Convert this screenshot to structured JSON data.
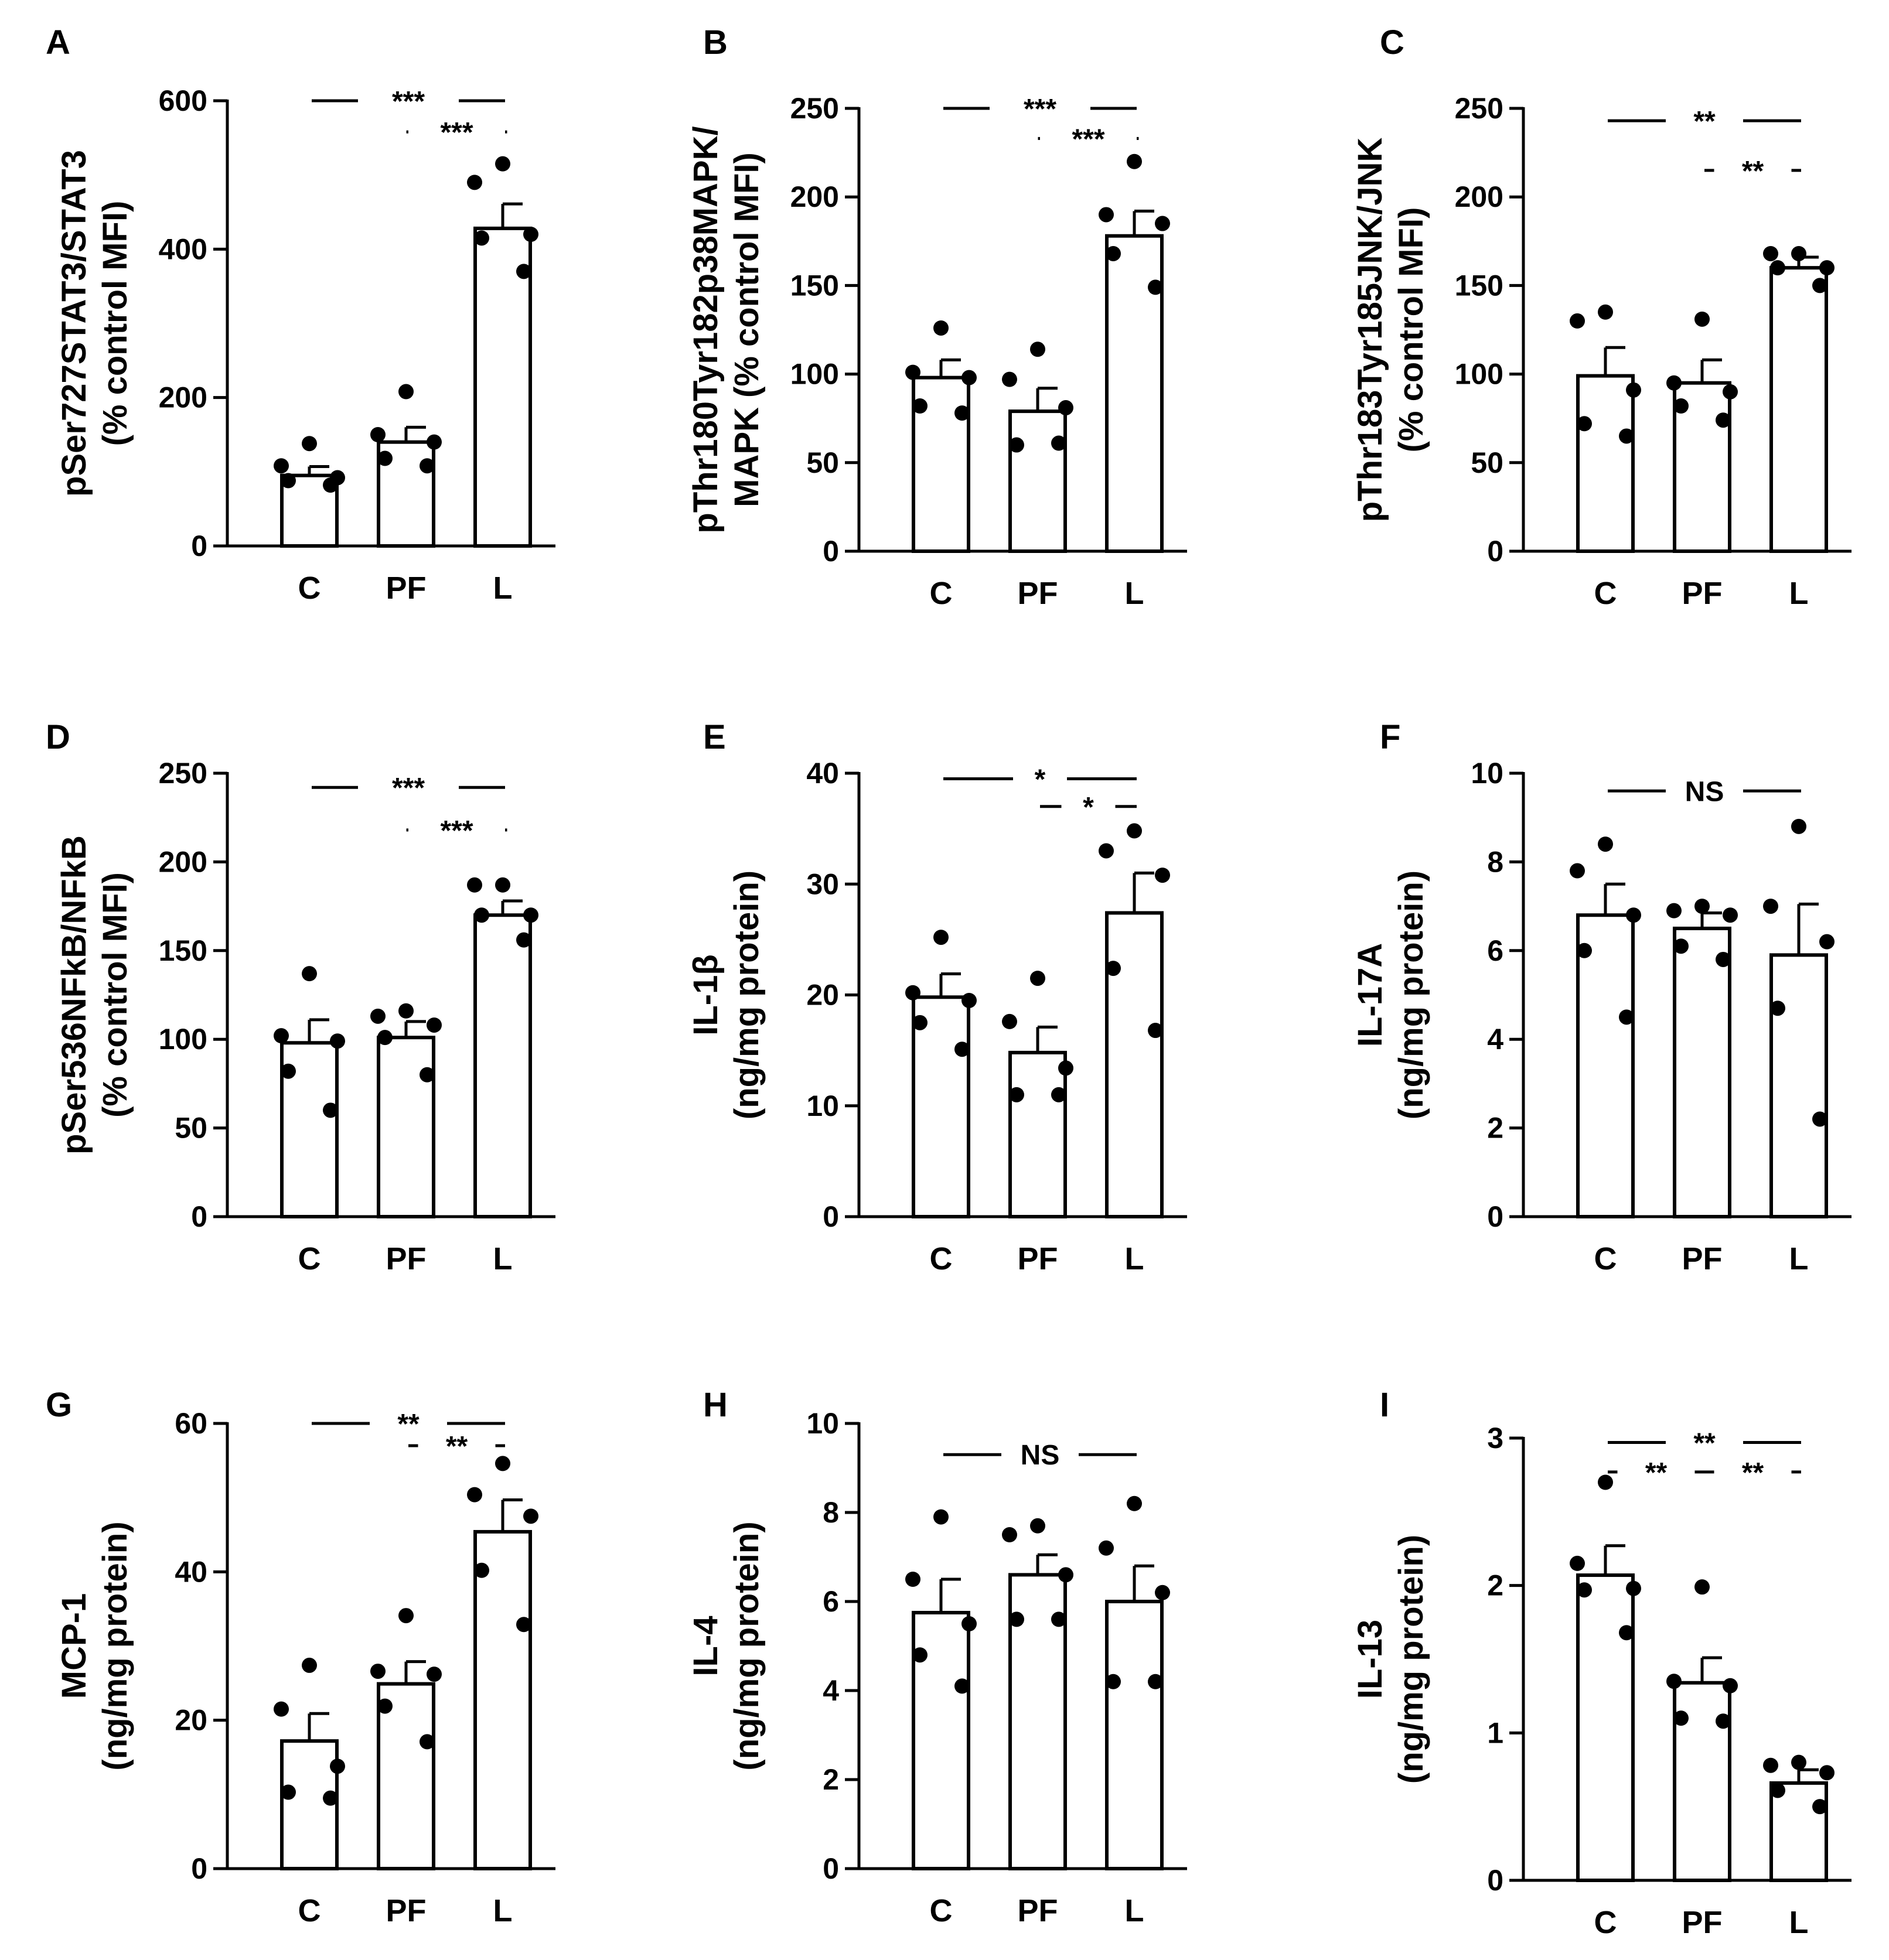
{
  "figure": {
    "title": ""
  },
  "chart_data": [
    {
      "panel": "A",
      "type": "bar",
      "categories": [
        "C",
        "PF",
        "L"
      ],
      "ylabel": [
        "pSer727STAT3/STAT3",
        "(% control MFI)"
      ],
      "ylim": [
        0,
        600
      ],
      "yticks": [
        0,
        200,
        400,
        600
      ],
      "series": [
        {
          "name": "mean",
          "values": [
            95,
            140,
            428
          ]
        }
      ],
      "errors": [
        12,
        20,
        33
      ],
      "points": [
        [
          138,
          108,
          92,
          88,
          82
        ],
        [
          208,
          150,
          140,
          118,
          108
        ],
        [
          515,
          490,
          420,
          415,
          370
        ]
      ],
      "significance": [
        {
          "from": 0,
          "to": 2,
          "label": "***",
          "y": 600
        },
        {
          "from": 1,
          "to": 2,
          "label": "***",
          "y": 558
        }
      ]
    },
    {
      "panel": "B",
      "type": "bar",
      "categories": [
        "C",
        "PF",
        "L"
      ],
      "ylabel": [
        "pThr180Tyr182p38MAPK/",
        "MAPK (% control MFI)"
      ],
      "ylim": [
        0,
        250
      ],
      "yticks": [
        0,
        50,
        100,
        150,
        200,
        250
      ],
      "series": [
        {
          "name": "mean",
          "values": [
            98,
            79,
            178
          ]
        }
      ],
      "errors": [
        10,
        13,
        14
      ],
      "points": [
        [
          126,
          101,
          98,
          82,
          78
        ],
        [
          114,
          97,
          81,
          60,
          61
        ],
        [
          220,
          190,
          185,
          168,
          149
        ]
      ],
      "significance": [
        {
          "from": 0,
          "to": 2,
          "label": "***",
          "y": 250
        },
        {
          "from": 1,
          "to": 2,
          "label": "***",
          "y": 233
        }
      ]
    },
    {
      "panel": "C",
      "type": "bar",
      "categories": [
        "C",
        "PF",
        "L"
      ],
      "ylabel": [
        "pThr183Tyr185JNK/JNK",
        "(% control MFI)"
      ],
      "ylim": [
        0,
        250
      ],
      "yticks": [
        0,
        50,
        100,
        150,
        200,
        250
      ],
      "series": [
        {
          "name": "mean",
          "values": [
            99,
            95,
            160
          ]
        }
      ],
      "errors": [
        16,
        13,
        6
      ],
      "points": [
        [
          135,
          130,
          91,
          72,
          65
        ],
        [
          131,
          95,
          90,
          82,
          74
        ],
        [
          168,
          168,
          160,
          160,
          150
        ]
      ],
      "significance": [
        {
          "from": 0,
          "to": 2,
          "label": "**",
          "y": 243
        },
        {
          "from": 1,
          "to": 2,
          "label": "**",
          "y": 215
        }
      ]
    },
    {
      "panel": "D",
      "type": "bar",
      "categories": [
        "C",
        "PF",
        "L"
      ],
      "ylabel": [
        "pSer536NFkB/NFkB",
        "(% control MFI)"
      ],
      "ylim": [
        0,
        250
      ],
      "yticks": [
        0,
        50,
        100,
        150,
        200,
        250
      ],
      "series": [
        {
          "name": "mean",
          "values": [
            98,
            101,
            170
          ]
        }
      ],
      "errors": [
        13,
        9,
        8
      ],
      "points": [
        [
          137,
          102,
          99,
          82,
          60
        ],
        [
          116,
          113,
          108,
          101,
          80
        ],
        [
          187,
          187,
          170,
          170,
          156
        ]
      ],
      "significance": [
        {
          "from": 0,
          "to": 2,
          "label": "***",
          "y": 242
        },
        {
          "from": 1,
          "to": 2,
          "label": "***",
          "y": 218
        }
      ]
    },
    {
      "panel": "E",
      "type": "bar",
      "categories": [
        "C",
        "PF",
        "L"
      ],
      "ylabel": [
        "IL-1β",
        "(ng/mg protein)"
      ],
      "ylim": [
        0,
        40
      ],
      "yticks": [
        0,
        10,
        20,
        30,
        40
      ],
      "series": [
        {
          "name": "mean",
          "values": [
            19.8,
            14.8,
            27.4
          ]
        }
      ],
      "errors": [
        2.1,
        2.3,
        3.6
      ],
      "points": [
        [
          25.2,
          20.2,
          19.5,
          17.5,
          15.1
        ],
        [
          21.5,
          17.6,
          13.4,
          11,
          11
        ],
        [
          34.8,
          33,
          30.8,
          22.4,
          16.8
        ]
      ],
      "significance": [
        {
          "from": 0,
          "to": 2,
          "label": "*",
          "y": 39.5
        },
        {
          "from": 1,
          "to": 2,
          "label": "*",
          "y": 37
        }
      ]
    },
    {
      "panel": "F",
      "type": "bar",
      "categories": [
        "C",
        "PF",
        "L"
      ],
      "ylabel": [
        "IL-17A",
        "(ng/mg protein)"
      ],
      "ylim": [
        0,
        10
      ],
      "yticks": [
        0,
        2,
        4,
        6,
        8,
        10
      ],
      "series": [
        {
          "name": "mean",
          "values": [
            6.8,
            6.5,
            5.9
          ]
        }
      ],
      "errors": [
        0.7,
        0.35,
        1.15
      ],
      "points": [
        [
          8.4,
          7.8,
          6.8,
          6,
          4.5
        ],
        [
          7,
          6.9,
          6.8,
          6.1,
          5.8
        ],
        [
          8.8,
          7,
          6.2,
          4.7,
          2.2
        ]
      ],
      "significance": [
        {
          "from": 0,
          "to": 2,
          "label": "NS",
          "y": 9.6
        }
      ]
    },
    {
      "panel": "G",
      "type": "bar",
      "categories": [
        "C",
        "PF",
        "L"
      ],
      "ylabel": [
        "MCP-1",
        "(ng/mg protein)"
      ],
      "ylim": [
        0,
        60
      ],
      "yticks": [
        0,
        20,
        40,
        60
      ],
      "series": [
        {
          "name": "mean",
          "values": [
            17.2,
            24.9,
            45.4
          ]
        }
      ],
      "errors": [
        3.7,
        3,
        4.3
      ],
      "points": [
        [
          27.4,
          21.5,
          13.8,
          10.3,
          9.5
        ],
        [
          34.1,
          26.6,
          26.2,
          21.9,
          17.1
        ],
        [
          54.6,
          50.4,
          47.5,
          40.2,
          32.9
        ]
      ],
      "significance": [
        {
          "from": 0,
          "to": 2,
          "label": "**",
          "y": 60
        },
        {
          "from": 1,
          "to": 2,
          "label": "**",
          "y": 57
        }
      ]
    },
    {
      "panel": "H",
      "type": "bar",
      "categories": [
        "C",
        "PF",
        "L"
      ],
      "ylabel": [
        "IL-4",
        "(ng/mg protein)"
      ],
      "ylim": [
        0,
        10
      ],
      "yticks": [
        0,
        2,
        4,
        6,
        8,
        10
      ],
      "series": [
        {
          "name": "mean",
          "values": [
            5.75,
            6.6,
            6
          ]
        }
      ],
      "errors": [
        0.75,
        0.45,
        0.8
      ],
      "points": [
        [
          7.9,
          6.5,
          5.5,
          4.8,
          4.1
        ],
        [
          7.7,
          7.5,
          6.6,
          5.6,
          5.6
        ],
        [
          8.2,
          7.2,
          6.2,
          4.2,
          4.2
        ]
      ],
      "significance": [
        {
          "from": 0,
          "to": 2,
          "label": "NS",
          "y": 9.3
        }
      ]
    },
    {
      "panel": "I",
      "type": "bar",
      "categories": [
        "C",
        "PF",
        "L"
      ],
      "ylabel": [
        "IL-13",
        "(ng/mg protein)"
      ],
      "ylim": [
        0,
        3
      ],
      "yticks": [
        0,
        1,
        2,
        3
      ],
      "series": [
        {
          "name": "mean",
          "values": [
            2.07,
            1.34,
            0.66
          ]
        }
      ],
      "errors": [
        0.2,
        0.17,
        0.09
      ],
      "points": [
        [
          2.7,
          2.15,
          1.98,
          1.97,
          1.68
        ],
        [
          1.99,
          1.35,
          1.32,
          1.1,
          1.08
        ],
        [
          0.8,
          0.78,
          0.73,
          0.61,
          0.5
        ]
      ],
      "significance": [
        {
          "from": 0,
          "to": 2,
          "label": "**",
          "y": 2.97
        },
        {
          "from": 0,
          "to": 1,
          "label": "**",
          "y": 2.77
        },
        {
          "from": 1,
          "to": 2,
          "label": "**",
          "y": 2.77
        }
      ]
    }
  ]
}
